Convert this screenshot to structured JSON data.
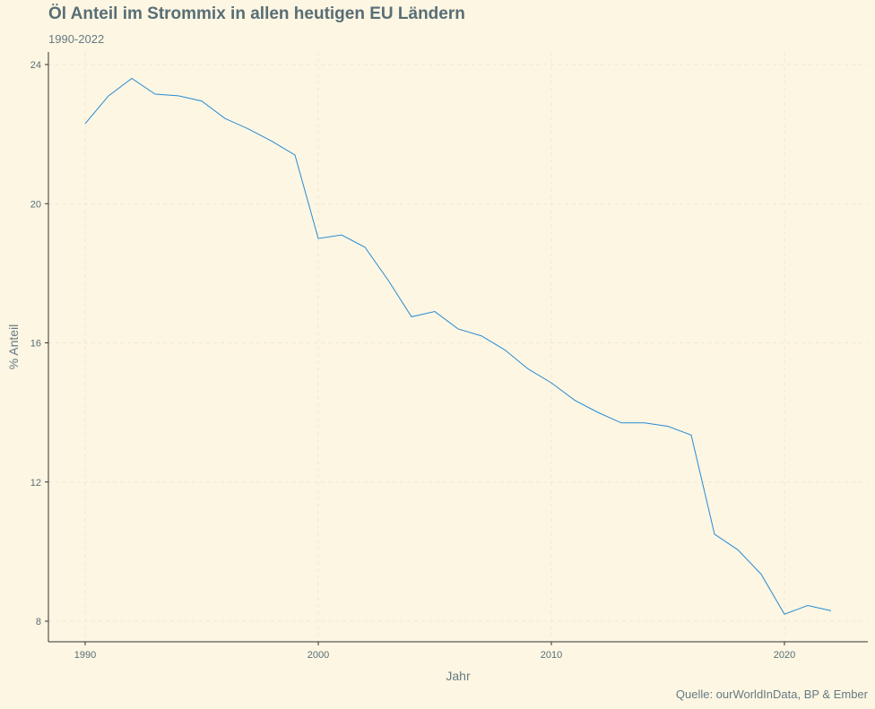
{
  "chart_data": {
    "type": "line",
    "title": "Öl Anteil im Strommix in allen heutigen EU Ländern",
    "subtitle": "1990-2022",
    "xlabel": "Jahr",
    "ylabel": "% Anteil",
    "caption": "Quelle: ourWorldInData, BP & Ember",
    "xlim": [
      1990,
      2022
    ],
    "ylim": [
      8,
      24
    ],
    "xticks": [
      1990,
      2000,
      2010,
      2020
    ],
    "yticks": [
      8,
      12,
      16,
      20,
      24
    ],
    "grid": true,
    "line_color": "#268bd2",
    "x": [
      1990,
      1991,
      1992,
      1993,
      1994,
      1995,
      1996,
      1997,
      1998,
      1999,
      2000,
      2001,
      2002,
      2003,
      2004,
      2005,
      2006,
      2007,
      2008,
      2009,
      2010,
      2011,
      2012,
      2013,
      2014,
      2015,
      2016,
      2017,
      2018,
      2019,
      2020,
      2021,
      2022
    ],
    "y": [
      22.3,
      23.1,
      23.6,
      23.15,
      23.1,
      22.95,
      22.45,
      22.15,
      21.8,
      21.4,
      19.0,
      19.1,
      18.75,
      17.8,
      16.75,
      16.9,
      16.4,
      16.2,
      15.8,
      15.25,
      14.85,
      14.35,
      14.0,
      13.7,
      13.7,
      13.6,
      13.35,
      10.5,
      10.05,
      9.35,
      8.2,
      8.45,
      8.3
    ]
  }
}
